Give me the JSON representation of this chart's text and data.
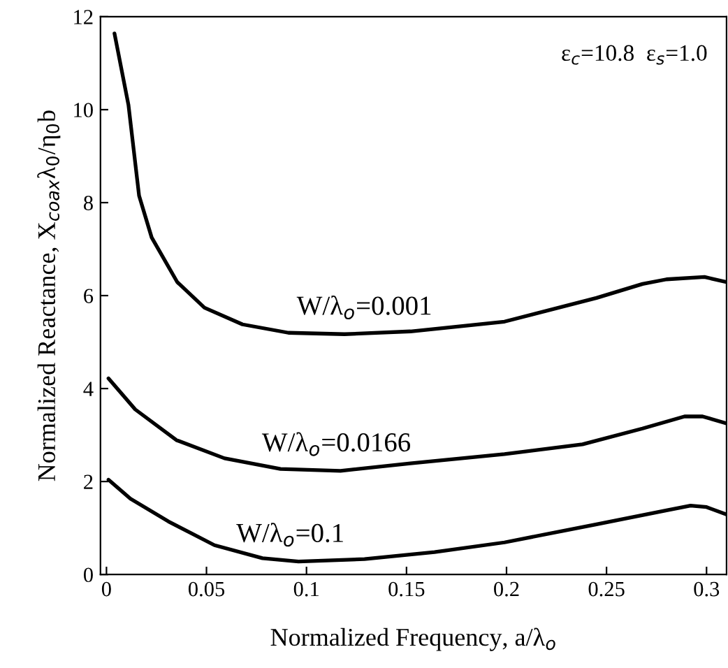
{
  "chart_data": {
    "type": "line",
    "xlabel": "Normalized Frequency, a/λ$_{o}$",
    "ylabel": "Normalized Reactance, X$_{coax}$λ$_{0}$/η$_{0}$b",
    "xlim": [
      -0.003,
      0.31
    ],
    "ylim": [
      0,
      12
    ],
    "xticks": [
      0,
      0.05,
      0.1,
      0.15,
      0.2,
      0.25,
      0.3
    ],
    "yticks": [
      0,
      2,
      4,
      6,
      8,
      10,
      12
    ],
    "grid": false,
    "marker": "none",
    "line_style": "solid",
    "annotations": [
      "ε$_{c}$=10.8  ε$_{s}$=1.0",
      {
        "text": "W/λ$_{o}$=0.001",
        "x": 0.129,
        "y": 5.17
      },
      {
        "text": "W/λ$_{o}$=0.0166",
        "x": 0.115,
        "y": 2.23
      },
      {
        "text": "W/λ$_{o}$=0.1",
        "x": 0.092,
        "y": 0.28
      }
    ],
    "series": [
      {
        "color": "#000000",
        "x": [
          0.004,
          0.011,
          0.0163,
          0.0226,
          0.0354,
          0.049,
          0.068,
          0.091,
          0.119,
          0.152,
          0.199,
          0.245,
          0.268,
          0.28,
          0.299,
          0.31
        ],
        "values": [
          11.64,
          10.1,
          8.15,
          7.25,
          6.29,
          5.74,
          5.38,
          5.2,
          5.17,
          5.23,
          5.44,
          5.95,
          6.25,
          6.35,
          6.4,
          6.29
        ]
      },
      {
        "color": "#000000",
        "x": [
          0.001,
          0.0144,
          0.035,
          0.059,
          0.087,
          0.117,
          0.152,
          0.199,
          0.238,
          0.268,
          0.289,
          0.298,
          0.31
        ],
        "values": [
          4.22,
          3.55,
          2.89,
          2.5,
          2.27,
          2.23,
          2.39,
          2.59,
          2.8,
          3.14,
          3.4,
          3.4,
          3.25
        ]
      },
      {
        "color": "#000000",
        "x": [
          0.001,
          0.012,
          0.031,
          0.054,
          0.078,
          0.096,
          0.129,
          0.164,
          0.199,
          0.245,
          0.28,
          0.292,
          0.3,
          0.31
        ],
        "values": [
          2.04,
          1.63,
          1.14,
          0.63,
          0.35,
          0.28,
          0.33,
          0.48,
          0.69,
          1.08,
          1.38,
          1.48,
          1.45,
          1.29
        ]
      }
    ]
  }
}
